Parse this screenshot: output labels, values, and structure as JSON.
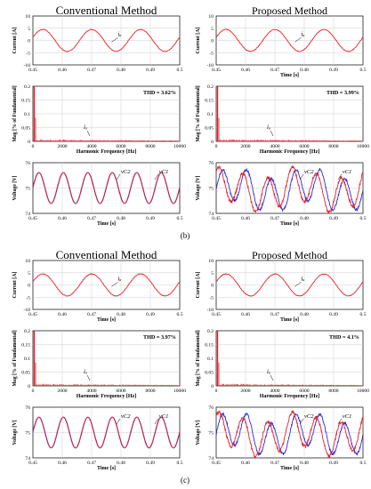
{
  "figure": {
    "groups": [
      {
        "label": "(b)",
        "columns": [
          {
            "title": "Conventional Method",
            "current": {
              "ylabel": "Current [A]",
              "xlabel": "",
              "xticks": [
                "0.45",
                "0.46",
                "0.47",
                "0.48",
                "0.49",
                "0.5"
              ],
              "yticks": [
                "10",
                "5",
                "0",
                "-5",
                "-10"
              ],
              "xlim": [
                0.45,
                0.5
              ],
              "ylim": [
                -10,
                10
              ],
              "annotation": "iₐ",
              "amplitude": 4.5,
              "frequency_hz": 60
            },
            "spectrum": {
              "ylabel": "Mag [% of Fundamental]",
              "xlabel": "Harmonic Frequency [Hz]",
              "xticks": [
                "0",
                "2000",
                "4000",
                "6000",
                "8000",
                "10000"
              ],
              "yticks": [
                "0.2",
                "0.15",
                "0.1",
                "0.05",
                "0"
              ],
              "xlim": [
                0,
                10000
              ],
              "ylim": [
                0,
                0.2
              ],
              "thd": "THD = 3.62%",
              "annotation": "iₐ"
            },
            "voltage": {
              "ylabel": "Voltage [V]",
              "xlabel": "",
              "xticks": [
                "0.45",
                "0.46",
                "0.47",
                "0.48",
                "0.49",
                "0.5"
              ],
              "yticks": [
                "76",
                "75",
                "74"
              ],
              "xlim": [
                0.45,
                0.5
              ],
              "ylim": [
                73.6,
                76.4
              ],
              "labels": [
                "vC2",
                "vC1"
              ],
              "mean": 75,
              "amplitude": 0.85,
              "frequency_hz": 120
            }
          },
          {
            "title": "Proposed Method",
            "current": {
              "ylabel": "Current [A]",
              "xlabel": "Time [s]",
              "xticks": [
                "0.45",
                "0.46",
                "0.47",
                "0.48",
                "0.49",
                "0.5"
              ],
              "yticks": [
                "10",
                "5",
                "0",
                "-5",
                "-10"
              ],
              "xlim": [
                0.45,
                0.5
              ],
              "ylim": [
                -10,
                10
              ],
              "annotation": "iₐ",
              "amplitude": 4.5,
              "frequency_hz": 60
            },
            "spectrum": {
              "ylabel": "Mag [% of Fundamental]",
              "xlabel": "Harmonic Frequency [Hz]",
              "xticks": [
                "0",
                "2000",
                "4000",
                "6000",
                "8000",
                "10000"
              ],
              "yticks": [
                "0.2",
                "0.15",
                "0.1",
                "0.05",
                "0"
              ],
              "xlim": [
                0,
                10000
              ],
              "ylim": [
                0,
                0.2
              ],
              "thd": "THD = 3.99%",
              "annotation": "iₐ"
            },
            "voltage": {
              "ylabel": "Voltage [V]",
              "xlabel": "",
              "xticks": [
                "0.45",
                "0.46",
                "0.47",
                "0.48",
                "0.49",
                "0.5"
              ],
              "yticks": [
                "76",
                "75",
                "74"
              ],
              "xlim": [
                0.45,
                0.5
              ],
              "ylim": [
                73.6,
                76.6
              ],
              "labels": [
                "vC2",
                "vC1"
              ],
              "mean": 75,
              "amplitude": 1.0,
              "frequency_hz": 120
            }
          }
        ]
      },
      {
        "label": "(c)",
        "columns": [
          {
            "title": "Conventional Method",
            "current": {
              "ylabel": "Current [A]",
              "xlabel": "Time [s]",
              "xticks": [
                "0.45",
                "0.46",
                "0.47",
                "0.48",
                "0.49",
                "0.5"
              ],
              "yticks": [
                "10",
                "5",
                "0",
                "-5",
                "-10"
              ],
              "xlim": [
                0.45,
                0.5
              ],
              "ylim": [
                -10,
                10
              ],
              "annotation": "iₐ",
              "amplitude": 4.5,
              "frequency_hz": 60
            },
            "spectrum": {
              "ylabel": "Mag [% of Fundamental]",
              "xlabel": "Harmonic Frequency [Hz]",
              "xticks": [
                "0",
                "2000",
                "4000",
                "6000",
                "8000",
                "10000"
              ],
              "yticks": [
                "0.2",
                "0.15",
                "0.1",
                "0.05",
                "0"
              ],
              "xlim": [
                0,
                10000
              ],
              "ylim": [
                0,
                0.2
              ],
              "thd": "THD = 3.97%",
              "annotation": "iₐ"
            },
            "voltage": {
              "ylabel": "Voltage [V]",
              "xlabel": "",
              "xticks": [
                "0.45",
                "0.46",
                "0.47",
                "0.48",
                "0.49",
                "0.5"
              ],
              "yticks": [
                "76",
                "75",
                "74"
              ],
              "xlim": [
                0.45,
                0.5
              ],
              "ylim": [
                73.6,
                76.4
              ],
              "labels": [
                "vC2",
                "vC1"
              ],
              "mean": 75,
              "amplitude": 0.85,
              "frequency_hz": 120
            }
          },
          {
            "title": "Proposed Method",
            "current": {
              "ylabel": "Current [A]",
              "xlabel": "Time [s]",
              "xticks": [
                "0.45",
                "0.46",
                "0.47",
                "0.48",
                "0.49",
                "0.5"
              ],
              "yticks": [
                "10",
                "5",
                "0",
                "-5",
                "-10"
              ],
              "xlim": [
                0.45,
                0.5
              ],
              "ylim": [
                -10,
                10
              ],
              "annotation": "iₐ",
              "amplitude": 4.5,
              "frequency_hz": 60
            },
            "spectrum": {
              "ylabel": "Mag [% of Fundamental]",
              "xlabel": "Harmonic Frequency [Hz]",
              "xticks": [
                "0",
                "2000",
                "4000",
                "6000",
                "8000",
                "10000"
              ],
              "yticks": [
                "0.2",
                "0.15",
                "0.1",
                "0.05",
                "0"
              ],
              "xlim": [
                0,
                10000
              ],
              "ylim": [
                0,
                0.2
              ],
              "thd": "THD = 4.1%",
              "annotation": "iₐ"
            },
            "voltage": {
              "ylabel": "Voltage [V]",
              "xlabel": "",
              "xticks": [
                "0.45",
                "0.46",
                "0.47",
                "0.48",
                "0.49",
                "0.5"
              ],
              "yticks": [
                "76",
                "75",
                "74"
              ],
              "xlim": [
                0.45,
                0.5
              ],
              "ylim": [
                73.6,
                76.6
              ],
              "labels": [
                "vC2",
                "vC1"
              ],
              "mean": 75,
              "amplitude": 1.0,
              "frequency_hz": 120
            }
          }
        ]
      }
    ],
    "colors": {
      "trace_red": "#e8202a",
      "trace_blue": "#2b2bd9",
      "grid": "#cfcfcf"
    }
  },
  "chart_data": [
    {
      "type": "line",
      "title": "Conventional Method",
      "ylabel": "Current [A]",
      "x": [
        0.45,
        0.5
      ],
      "ylim": [
        -10,
        10
      ],
      "series": [
        {
          "name": "iₐ",
          "waveform": "sine",
          "amplitude": 4.5,
          "frequency_hz": 60
        }
      ]
    },
    {
      "type": "bar",
      "title": "",
      "xlabel": "Harmonic Frequency [Hz]",
      "ylabel": "Mag [% of Fundamental]",
      "xlim": [
        0,
        10000
      ],
      "ylim": [
        0,
        0.2
      ],
      "annotation": "THD = 3.62%"
    },
    {
      "type": "line",
      "ylabel": "Voltage [V]",
      "ylim": [
        73.6,
        76.4
      ],
      "series": [
        {
          "name": "vC2",
          "mean": 75,
          "amplitude": 0.85
        },
        {
          "name": "vC1",
          "mean": 75,
          "amplitude": 0.85
        }
      ]
    },
    {
      "type": "line",
      "title": "Proposed Method",
      "xlabel": "Time [s]",
      "ylabel": "Current [A]",
      "ylim": [
        -10,
        10
      ],
      "series": [
        {
          "name": "iₐ",
          "amplitude": 4.5,
          "frequency_hz": 60
        }
      ]
    },
    {
      "type": "bar",
      "xlabel": "Harmonic Frequency [Hz]",
      "ylabel": "Mag [% of Fundamental]",
      "xlim": [
        0,
        10000
      ],
      "ylim": [
        0,
        0.2
      ],
      "annotation": "THD = 3.99%"
    },
    {
      "type": "line",
      "ylabel": "Voltage [V]",
      "ylim": [
        73.6,
        76.6
      ],
      "series": [
        {
          "name": "vC2",
          "mean": 75,
          "amplitude": 1.0
        },
        {
          "name": "vC1",
          "mean": 75,
          "amplitude": 1.0
        }
      ]
    },
    {
      "type": "line",
      "title": "Conventional Method",
      "xlabel": "Time [s]",
      "ylabel": "Current [A]",
      "ylim": [
        -10,
        10
      ],
      "series": [
        {
          "name": "iₐ",
          "amplitude": 4.5,
          "frequency_hz": 60
        }
      ]
    },
    {
      "type": "bar",
      "xlabel": "Harmonic Frequency [Hz]",
      "ylabel": "Mag [% of Fundamental]",
      "xlim": [
        0,
        10000
      ],
      "ylim": [
        0,
        0.2
      ],
      "annotation": "THD = 3.97%"
    },
    {
      "type": "line",
      "ylabel": "Voltage [V]",
      "ylim": [
        73.6,
        76.4
      ],
      "series": [
        {
          "name": "vC2",
          "mean": 75,
          "amplitude": 0.85
        },
        {
          "name": "vC1",
          "mean": 75,
          "amplitude": 0.85
        }
      ]
    },
    {
      "type": "line",
      "title": "Proposed Method",
      "xlabel": "Time [s]",
      "ylabel": "Current [A]",
      "ylim": [
        -10,
        10
      ],
      "series": [
        {
          "name": "iₐ",
          "amplitude": 4.5,
          "frequency_hz": 60
        }
      ]
    },
    {
      "type": "bar",
      "xlabel": "Harmonic Frequency [Hz]",
      "ylabel": "Mag [% of Fundamental]",
      "xlim": [
        0,
        10000
      ],
      "ylim": [
        0,
        0.2
      ],
      "annotation": "THD = 4.1%"
    },
    {
      "type": "line",
      "ylabel": "Voltage [V]",
      "ylim": [
        73.6,
        76.6
      ],
      "series": [
        {
          "name": "vC2",
          "mean": 75,
          "amplitude": 1.0
        },
        {
          "name": "vC1",
          "mean": 75,
          "amplitude": 1.0
        }
      ]
    }
  ]
}
